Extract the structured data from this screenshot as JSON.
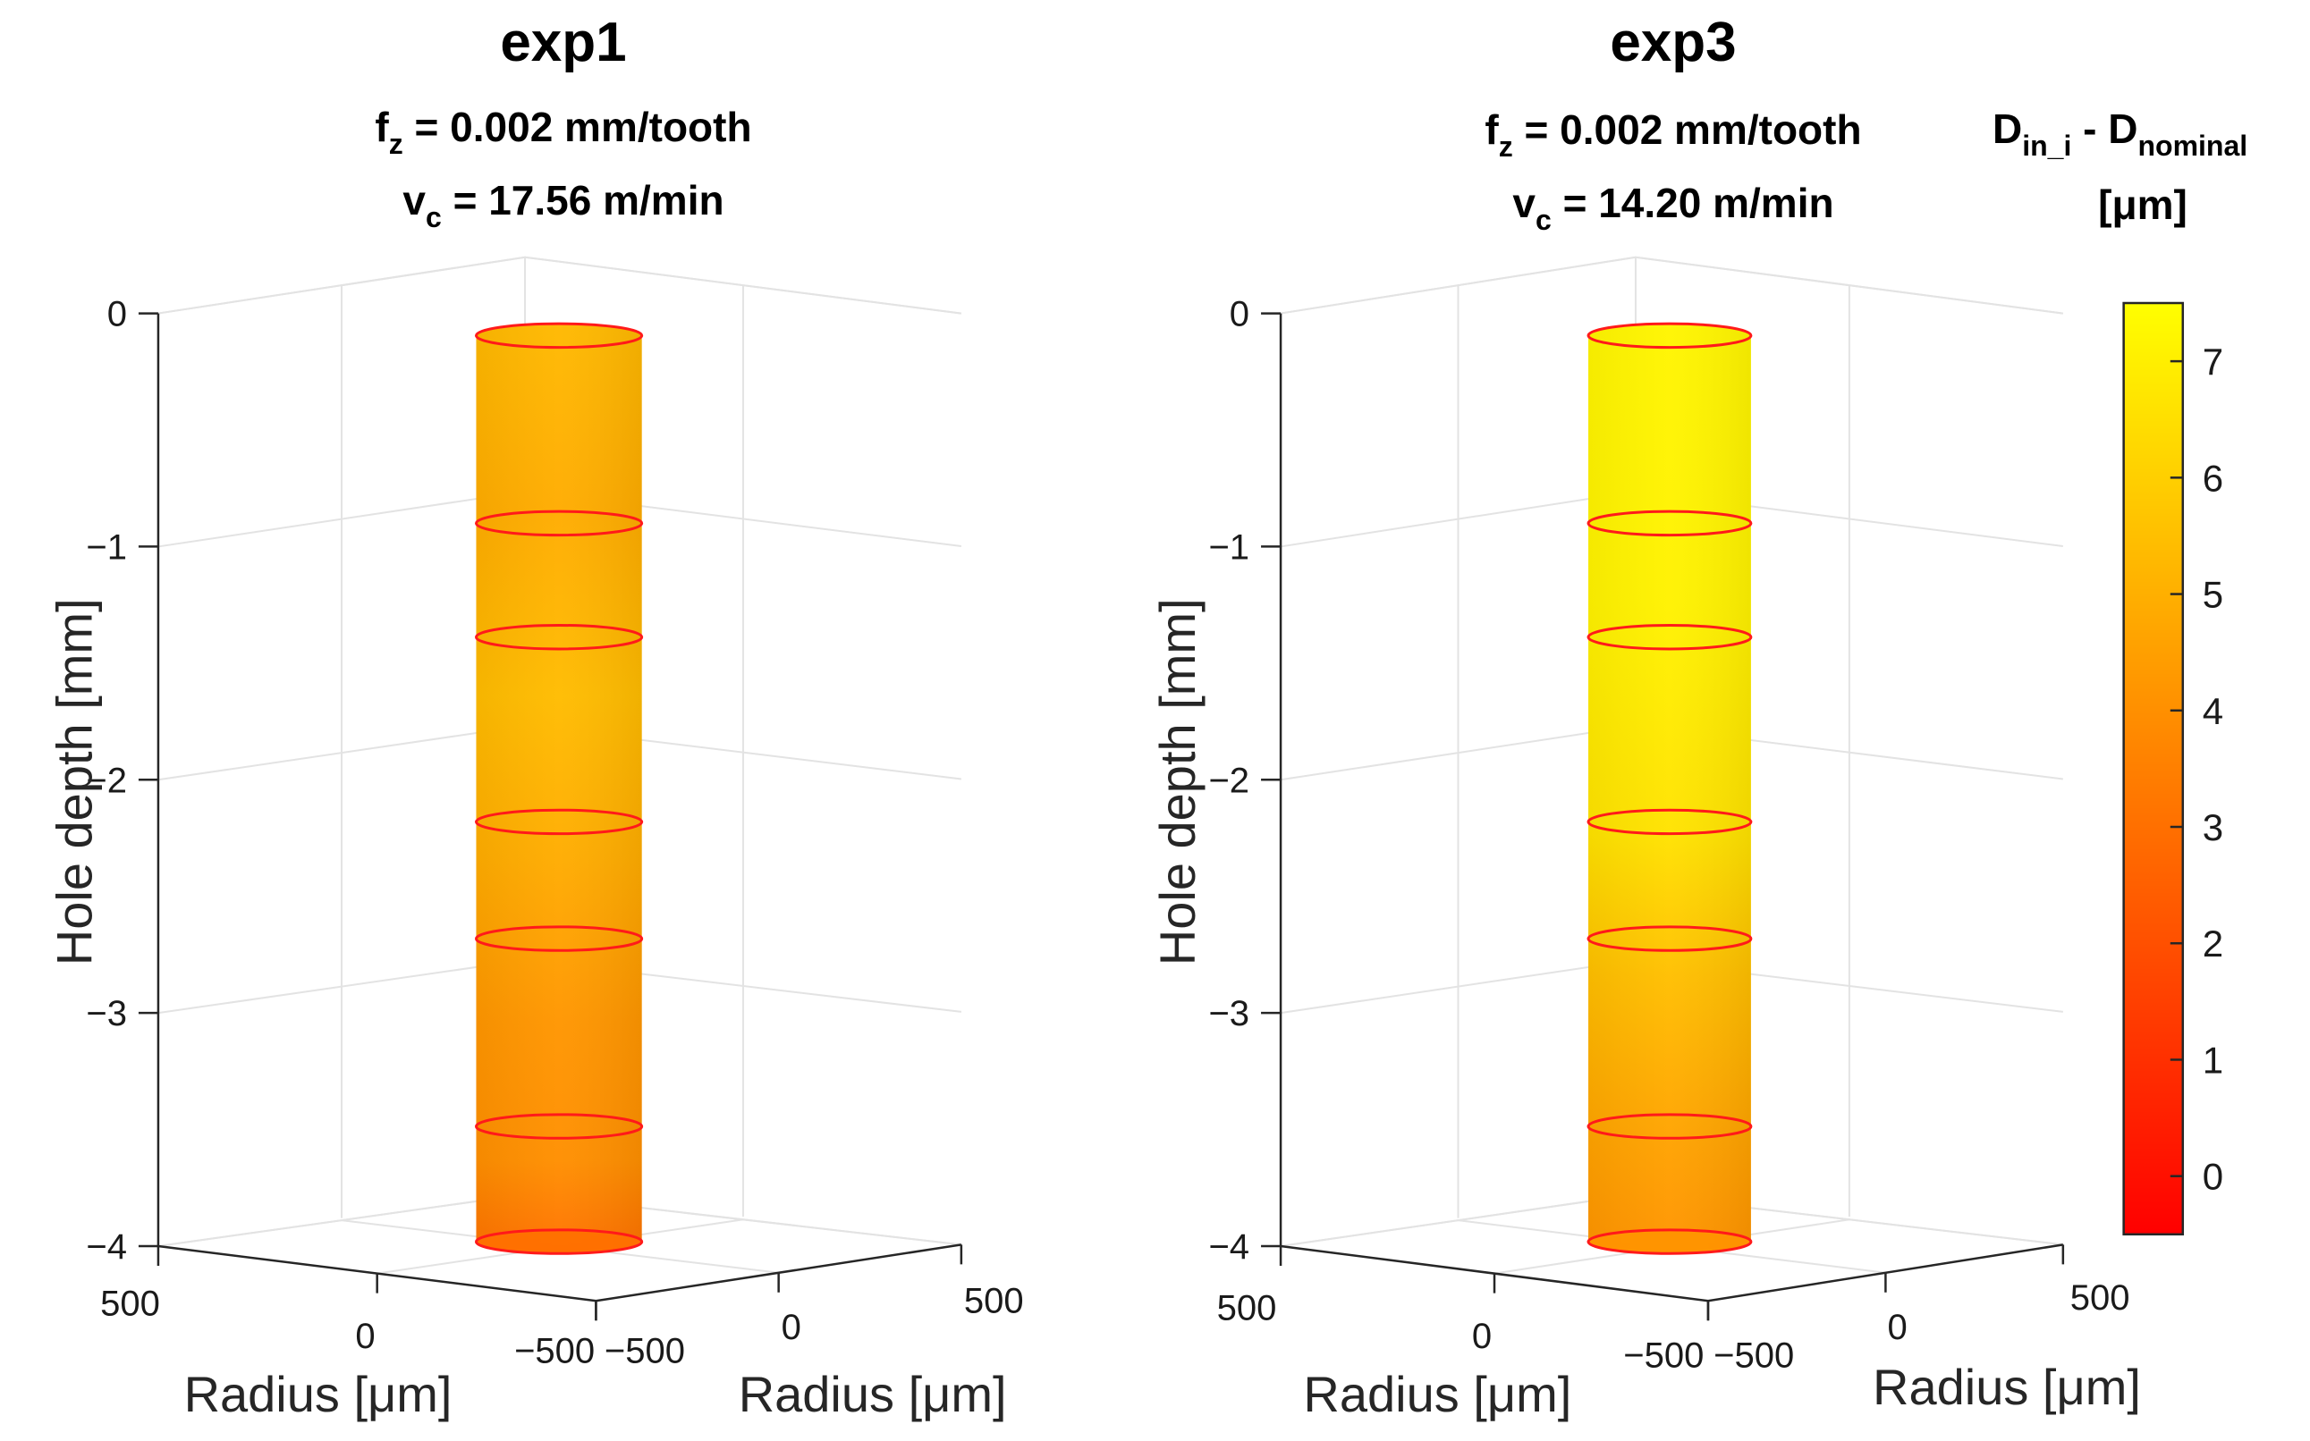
{
  "colors": {
    "ring": "#ff1a1a",
    "axis": "#262626",
    "grid": "#e3e3e3"
  },
  "chart_data": [
    {
      "type": "surface3d",
      "title": "exp1",
      "subtitle": {
        "fz": {
          "base": "f",
          "sub": "z",
          "rest": " = 0.002 mm/tooth"
        },
        "vc": {
          "base": "v",
          "sub": "c",
          "rest": " = 17.56 m/min"
        }
      },
      "zlabel": "Hole depth [mm]",
      "xlabel": "Radius [μm]",
      "ylabel": "Radius [μm]",
      "zticks": [
        "0",
        "−1",
        "−2",
        "−3",
        "−4"
      ],
      "xticks": [
        "500",
        "0",
        "−500"
      ],
      "yticks": [
        "−500",
        "0",
        "500"
      ],
      "zlim": [
        -4,
        0
      ],
      "ring_depths_mm": [
        0,
        -0.9,
        -1.4,
        -2.2,
        -2.75,
        -3.55,
        -4.0
      ],
      "diameter_deviation_profile": [
        {
          "depth": 0,
          "value": 5.3
        },
        {
          "depth": -0.8,
          "value": 4.9
        },
        {
          "depth": -1.6,
          "value": 5.4
        },
        {
          "depth": -2.3,
          "value": 4.9
        },
        {
          "depth": -3.0,
          "value": 4.2
        },
        {
          "depth": -3.6,
          "value": 4.0
        },
        {
          "depth": -4.0,
          "value": 3.0
        }
      ]
    },
    {
      "type": "surface3d",
      "title": "exp3",
      "subtitle": {
        "fz": {
          "base": "f",
          "sub": "z",
          "rest": " = 0.002 mm/tooth"
        },
        "vc": {
          "base": "v",
          "sub": "c",
          "rest": " = 14.20 m/min"
        }
      },
      "zlabel": "Hole depth [mm]",
      "xlabel": "Radius [μm]",
      "ylabel": "Radius [μm]",
      "zticks": [
        "0",
        "−1",
        "−2",
        "−3",
        "−4"
      ],
      "xticks": [
        "500",
        "0",
        "−500"
      ],
      "yticks": [
        "−500",
        "0",
        "500"
      ],
      "zlim": [
        -4,
        0
      ],
      "ring_depths_mm": [
        0,
        -0.9,
        -1.4,
        -2.2,
        -2.75,
        -3.55,
        -4.0
      ],
      "diameter_deviation_profile": [
        {
          "depth": 0,
          "value": 7.2
        },
        {
          "depth": -1.2,
          "value": 7.1
        },
        {
          "depth": -2.2,
          "value": 6.6
        },
        {
          "depth": -2.8,
          "value": 5.5
        },
        {
          "depth": -3.5,
          "value": 4.6
        },
        {
          "depth": -4.0,
          "value": 4.1
        }
      ]
    }
  ],
  "colorbar": {
    "label_main": {
      "base": "D",
      "sub": "in_i",
      "mid": " - D",
      "sub2": "nominal"
    },
    "label_unit": "[μm]",
    "range": [
      -0.5,
      7.5
    ],
    "ticks": [
      "0",
      "1",
      "2",
      "3",
      "4",
      "5",
      "6",
      "7"
    ],
    "colormap": "autumn"
  }
}
